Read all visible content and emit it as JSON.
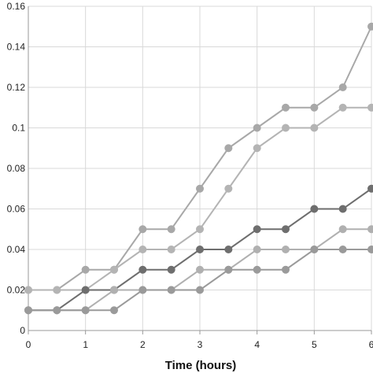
{
  "chart_data": {
    "type": "line",
    "title": "",
    "xlabel": "Time (hours)",
    "ylabel": "",
    "xlim": [
      0,
      6
    ],
    "ylim": [
      0,
      0.16
    ],
    "xticks": [
      0,
      1,
      2,
      3,
      4,
      5,
      6
    ],
    "xtick_labels": [
      "0",
      "1",
      "2",
      "3",
      "4",
      "5",
      "6"
    ],
    "yticks": [
      0,
      0.02,
      0.04,
      0.06,
      0.08,
      0.1,
      0.12,
      0.14,
      0.16
    ],
    "ytick_labels": [
      "0",
      "0.02",
      "0.04",
      "0.06",
      "0.08",
      "0.1",
      "0.12",
      "0.14",
      "0.16"
    ],
    "grid": true,
    "x": [
      0,
      0.5,
      1,
      1.5,
      2,
      2.5,
      3,
      3.5,
      4,
      4.5,
      5,
      5.5,
      6
    ],
    "series": [
      {
        "color": "#a8a8a8",
        "values": [
          0.02,
          0.02,
          0.03,
          0.03,
          0.05,
          0.05,
          0.07,
          0.09,
          0.1,
          0.11,
          0.11,
          0.12,
          0.15
        ]
      },
      {
        "color": "#b4b4b4",
        "values": [
          0.02,
          0.02,
          0.02,
          0.03,
          0.04,
          0.04,
          0.05,
          0.07,
          0.09,
          0.1,
          0.1,
          0.11,
          0.11
        ]
      },
      {
        "color": "#6e6e6e",
        "values": [
          0.01,
          0.01,
          0.02,
          0.02,
          0.03,
          0.03,
          0.04,
          0.04,
          0.05,
          0.05,
          0.06,
          0.06,
          0.07
        ]
      },
      {
        "color": "#b0b0b0",
        "values": [
          0.01,
          0.01,
          0.01,
          0.02,
          0.02,
          0.02,
          0.03,
          0.03,
          0.04,
          0.04,
          0.04,
          0.05,
          0.05
        ]
      },
      {
        "color": "#9a9a9a",
        "values": [
          0.01,
          0.01,
          0.01,
          0.01,
          0.02,
          0.02,
          0.02,
          0.03,
          0.03,
          0.03,
          0.04,
          0.04,
          0.04
        ]
      }
    ]
  }
}
